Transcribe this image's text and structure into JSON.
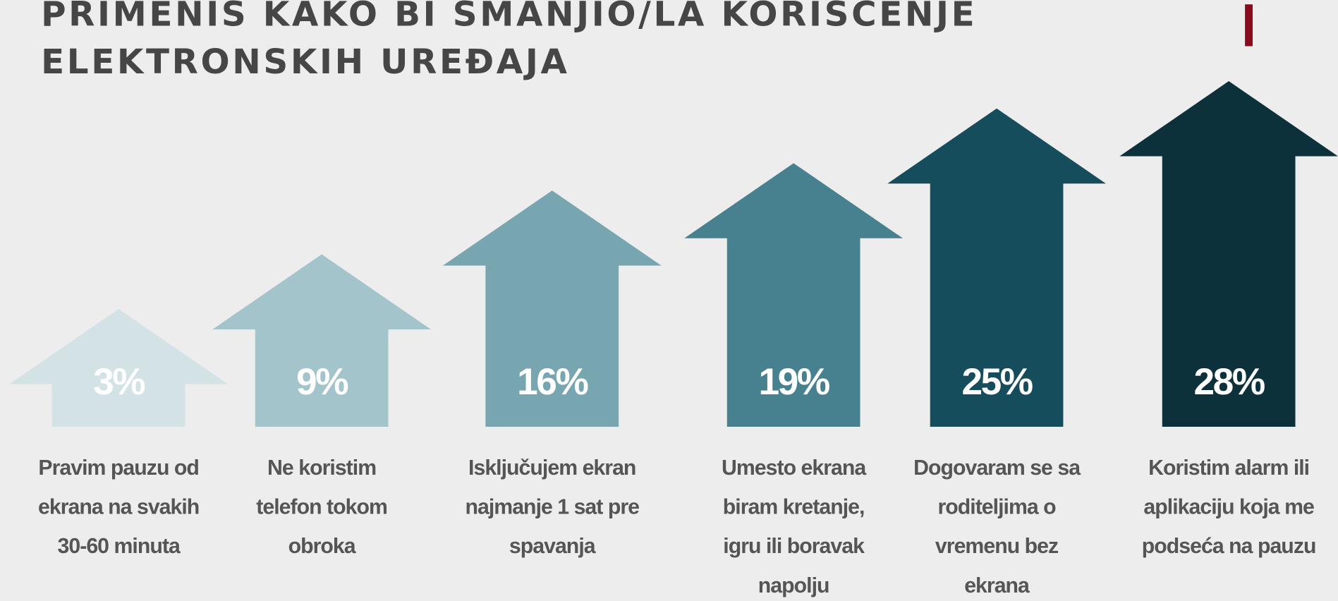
{
  "chart_data": {
    "type": "arrow",
    "title_lines": [
      "PRIMENIS KAKO BI SMANJIO/LA KORISCENJE",
      "ELEKTRONSKIH UREĐAJA"
    ],
    "categories": [
      "Pravim pauzu od\nekrana na svakih\n30-60 minuta",
      "Ne koristim\ntelefon tokom\nobroka",
      "Isključujem ekran\nnajmanje 1 sat pre\nspavanja",
      "Umesto ekrana\nbiram kretanje,\nigru ili boravak\nnapolju",
      "Dogovaram se sa\nroditeljima o\nvremenu bez\nekrana",
      "Koristim alarm ili\naplikaciju koja me\npodseća na pauzu"
    ],
    "values": [
      3,
      9,
      16,
      19,
      25,
      28
    ],
    "value_labels": [
      "3%",
      "9%",
      "16%",
      "19%",
      "25%",
      "28%"
    ],
    "colors": [
      "#d3e2e5",
      "#a3c4ca",
      "#77a5b0",
      "#47818f",
      "#164d5c",
      "#0c313a"
    ]
  }
}
